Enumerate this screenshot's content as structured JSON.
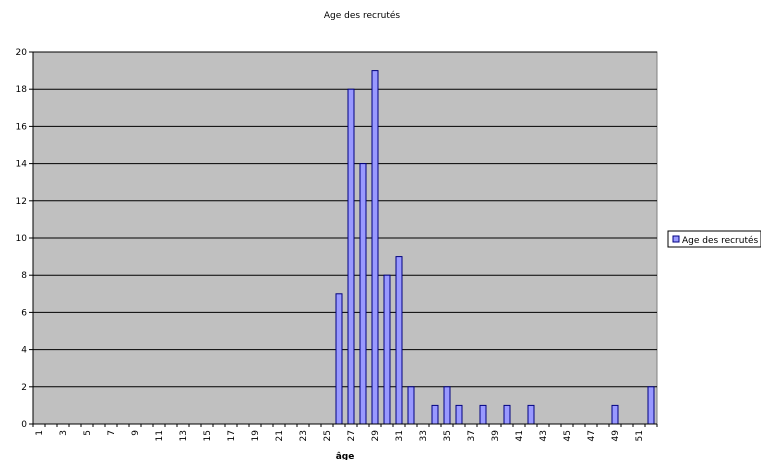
{
  "chart_data": {
    "type": "bar",
    "title": "Age des recrutés",
    "xlabel": "âge",
    "ylabel": "",
    "ylim": [
      0,
      20
    ],
    "yticks": [
      0,
      2,
      4,
      6,
      8,
      10,
      12,
      14,
      16,
      18,
      20
    ],
    "x_tick_labels": [
      "1",
      "3",
      "5",
      "7",
      "9",
      "11",
      "13",
      "15",
      "17",
      "19",
      "21",
      "23",
      "25",
      "27",
      "29",
      "31",
      "33",
      "35",
      "37",
      "39",
      "41",
      "43",
      "45",
      "47",
      "49",
      "51"
    ],
    "grid": true,
    "legend_position": "right",
    "colors": {
      "plot_bg": "#c0c0c0",
      "bar_fill": "#9999ff",
      "bar_stroke": "#000080",
      "grid": "#000000"
    },
    "categories": [
      1,
      2,
      3,
      4,
      5,
      6,
      7,
      8,
      9,
      10,
      11,
      12,
      13,
      14,
      15,
      16,
      17,
      18,
      19,
      20,
      21,
      22,
      23,
      24,
      25,
      26,
      27,
      28,
      29,
      30,
      31,
      32,
      33,
      34,
      35,
      36,
      37,
      38,
      39,
      40,
      41,
      42,
      43,
      44,
      45,
      46,
      47,
      48,
      49,
      50,
      51,
      52
    ],
    "series": [
      {
        "name": "Age des recrutés",
        "values": [
          0,
          0,
          0,
          0,
          0,
          0,
          0,
          0,
          0,
          0,
          0,
          0,
          0,
          0,
          0,
          0,
          0,
          0,
          0,
          0,
          0,
          0,
          0,
          0,
          0,
          7,
          18,
          14,
          19,
          8,
          9,
          2,
          0,
          1,
          2,
          1,
          0,
          1,
          0,
          1,
          0,
          1,
          0,
          0,
          0,
          0,
          0,
          0,
          1,
          0,
          0,
          2
        ]
      }
    ]
  }
}
